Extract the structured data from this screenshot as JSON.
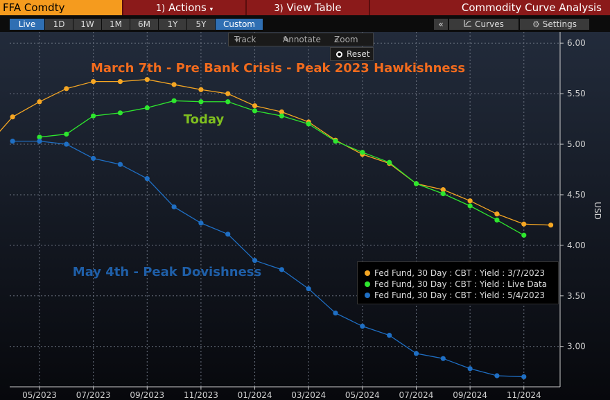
{
  "topbar": {
    "ticker": "FFA Comdty",
    "actions": {
      "num": "1)",
      "label": "Actions",
      "caret": "▾"
    },
    "view_table": {
      "num": "3)",
      "label": "View Table"
    },
    "title": "Commodity Curve Analysis"
  },
  "periods": [
    "Live",
    "1D",
    "1W",
    "1M",
    "6M",
    "1Y",
    "5Y",
    "Custom"
  ],
  "active_periods": [
    "Live",
    "Custom"
  ],
  "tools": {
    "collapse": "«",
    "curves": "Curves",
    "settings": "Settings",
    "track": "Track",
    "annotate": "Annotate",
    "zoom": "Zoom",
    "reset": "Reset"
  },
  "icons": {
    "curves": "curves-icon",
    "settings": "gear-icon",
    "track": "crosshair-icon",
    "annotate": "annotate-icon",
    "zoom": "magnifier-icon",
    "reset": "radio-icon"
  },
  "chart_data": {
    "type": "line",
    "ylabel": "USD",
    "ylim": [
      2.65,
      6.08
    ],
    "yticks": [
      3.0,
      3.5,
      4.0,
      4.5,
      5.0,
      5.5,
      6.0
    ],
    "ytick_labels": [
      "3.00",
      "3.50",
      "4.00",
      "4.50",
      "5.00",
      "5.50",
      "6.00"
    ],
    "grid": true,
    "x_months": [
      "2023-05",
      "2023-07",
      "2023-09",
      "2023-11",
      "2024-01",
      "2024-03",
      "2024-05",
      "2024-07",
      "2024-09",
      "2024-11"
    ],
    "x_tick_labels": [
      "05/2023",
      "07/2023",
      "09/2023",
      "11/2023",
      "01/2024",
      "03/2024",
      "05/2024",
      "07/2024",
      "09/2024",
      "11/2024"
    ],
    "series": [
      {
        "name": "Fed Fund, 30 Day : CBT : Yield : 3/7/2023",
        "color": "#f5a623",
        "points": [
          [
            "2023-03",
            4.97
          ],
          [
            "2023-04",
            5.27
          ],
          [
            "2023-05",
            5.42
          ],
          [
            "2023-06",
            5.55
          ],
          [
            "2023-07",
            5.62
          ],
          [
            "2023-08",
            5.62
          ],
          [
            "2023-09",
            5.64
          ],
          [
            "2023-10",
            5.59
          ],
          [
            "2023-11",
            5.54
          ],
          [
            "2023-12",
            5.5
          ],
          [
            "2024-01",
            5.38
          ],
          [
            "2024-02",
            5.32
          ],
          [
            "2024-03",
            5.22
          ],
          [
            "2024-04",
            5.04
          ],
          [
            "2024-05",
            4.9
          ],
          [
            "2024-06",
            4.81
          ],
          [
            "2024-07",
            4.61
          ],
          [
            "2024-08",
            4.55
          ],
          [
            "2024-09",
            4.44
          ],
          [
            "2024-10",
            4.31
          ],
          [
            "2024-11",
            4.21
          ],
          [
            "2024-12",
            4.2
          ]
        ]
      },
      {
        "name": "Fed Fund, 30 Day : CBT : Yield : Live Data",
        "color": "#2ee62e",
        "points": [
          [
            "2023-05",
            5.07
          ],
          [
            "2023-06",
            5.1
          ],
          [
            "2023-07",
            5.28
          ],
          [
            "2023-08",
            5.31
          ],
          [
            "2023-09",
            5.36
          ],
          [
            "2023-10",
            5.43
          ],
          [
            "2023-11",
            5.42
          ],
          [
            "2023-12",
            5.42
          ],
          [
            "2024-01",
            5.33
          ],
          [
            "2024-02",
            5.28
          ],
          [
            "2024-03",
            5.2
          ],
          [
            "2024-04",
            5.03
          ],
          [
            "2024-05",
            4.92
          ],
          [
            "2024-06",
            4.82
          ],
          [
            "2024-07",
            4.61
          ],
          [
            "2024-08",
            4.51
          ],
          [
            "2024-09",
            4.39
          ],
          [
            "2024-10",
            4.25
          ],
          [
            "2024-11",
            4.1
          ]
        ]
      },
      {
        "name": "Fed Fund, 30 Day : CBT : Yield : 5/4/2023",
        "color": "#1f6fc4",
        "points": [
          [
            "2023-04",
            5.03
          ],
          [
            "2023-05",
            5.03
          ],
          [
            "2023-06",
            5.0
          ],
          [
            "2023-07",
            4.86
          ],
          [
            "2023-08",
            4.8
          ],
          [
            "2023-09",
            4.66
          ],
          [
            "2023-10",
            4.38
          ],
          [
            "2023-11",
            4.22
          ],
          [
            "2023-12",
            4.11
          ],
          [
            "2024-01",
            3.85
          ],
          [
            "2024-02",
            3.76
          ],
          [
            "2024-03",
            3.57
          ],
          [
            "2024-04",
            3.33
          ],
          [
            "2024-05",
            3.2
          ],
          [
            "2024-06",
            3.11
          ],
          [
            "2024-07",
            2.93
          ],
          [
            "2024-08",
            2.88
          ],
          [
            "2024-09",
            2.78
          ],
          [
            "2024-10",
            2.71
          ],
          [
            "2024-11",
            2.7
          ]
        ]
      }
    ],
    "annotations": [
      {
        "text": "March 7th - Pre Bank Crisis - Peak 2023 Hawkishness",
        "color": "#f26b1d",
        "series": 0
      },
      {
        "text": "Today",
        "color": "#7fbf1f",
        "series": 1
      },
      {
        "text": "May 4th - Peak Dovishness",
        "color": "#1f5fa8",
        "series": 2
      }
    ],
    "legend_position": "bottom-right"
  }
}
